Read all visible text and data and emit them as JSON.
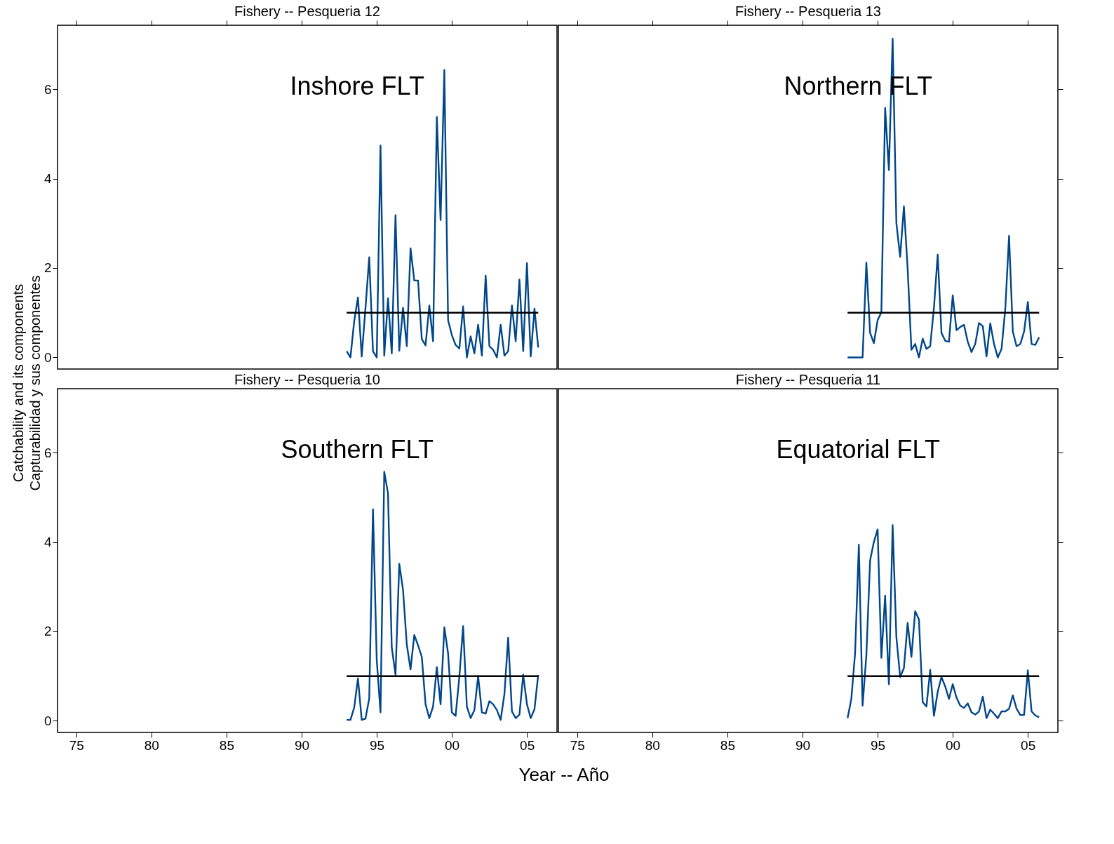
{
  "chart_data": [
    {
      "type": "line",
      "title": "Fishery -- Pesqueria  12",
      "annotations": [
        "Inshore FLT"
      ],
      "ylabel": "Catchability and its components\nCapturabilidad y sus componentes",
      "tick_labels": "y",
      "x": [
        1993.0,
        1993.25,
        1993.5,
        1993.75,
        1994.0,
        1994.25,
        1994.5,
        1994.75,
        1995.0,
        1995.25,
        1995.5,
        1995.75,
        1996.0,
        1996.25,
        1996.5,
        1996.75,
        1997.0,
        1997.25,
        1997.5,
        1997.75,
        1998.0,
        1998.25,
        1998.5,
        1998.75,
        1999.0,
        1999.25,
        1999.5,
        1999.75,
        2000.0,
        2000.25,
        2000.5,
        2000.75,
        2001.0,
        2001.25,
        2001.5,
        2001.75,
        2002.0,
        2002.25,
        2002.5,
        2002.75,
        2003.0,
        2003.25,
        2003.5,
        2003.75,
        2004.0,
        2004.25,
        2004.5,
        2004.75,
        2005.0,
        2005.25,
        2005.5,
        2005.75
      ],
      "xticks": [
        1975,
        1980,
        1985,
        1990,
        1995,
        2000,
        2005
      ],
      "series": [
        {
          "color": "#00468b",
          "values": [
            0.14,
            0.0,
            0.81,
            1.34,
            0.02,
            1.1,
            2.24,
            0.14,
            0.0,
            4.74,
            0.04,
            1.32,
            0.09,
            3.18,
            0.15,
            1.11,
            0.25,
            2.44,
            1.72,
            1.72,
            0.41,
            0.27,
            1.16,
            0.36,
            5.38,
            3.07,
            6.43,
            0.83,
            0.5,
            0.28,
            0.2,
            1.14,
            0.0,
            0.47,
            0.09,
            0.73,
            0.04,
            1.83,
            0.25,
            0.17,
            0.0,
            0.73,
            0.04,
            0.14,
            1.16,
            0.36,
            1.74,
            0.14,
            2.11,
            0.02,
            1.09,
            0.22
          ]
        },
        {
          "color": "#000000",
          "values": [
            1,
            1,
            1,
            1,
            1,
            1,
            1,
            1,
            1,
            1,
            1,
            1,
            1,
            1,
            1,
            1,
            1,
            1,
            1,
            1,
            1,
            1,
            1,
            1,
            1,
            1,
            1,
            1,
            1,
            1,
            1,
            1,
            1,
            1,
            1,
            1,
            1,
            1,
            1,
            1,
            1,
            1,
            1,
            1,
            1,
            1,
            1,
            1,
            1,
            1,
            1,
            1
          ]
        }
      ],
      "xlim": [
        1973.75,
        2007.0
      ],
      "ylim": [
        -0.26,
        7.43
      ],
      "yticks": [
        0,
        2,
        4,
        6
      ],
      "grid": false,
      "legend": false
    },
    {
      "type": "line",
      "title": "Fishery -- Pesqueria  13",
      "annotations": [
        "Northern FLT"
      ],
      "tick_labels": false,
      "x": [
        1993.0,
        1993.25,
        1993.5,
        1993.75,
        1994.0,
        1994.25,
        1994.5,
        1994.75,
        1995.0,
        1995.25,
        1995.5,
        1995.75,
        1996.0,
        1996.25,
        1996.5,
        1996.75,
        1997.0,
        1997.25,
        1997.5,
        1997.75,
        1998.0,
        1998.25,
        1998.5,
        1998.75,
        1999.0,
        1999.25,
        1999.5,
        1999.75,
        2000.0,
        2000.25,
        2000.5,
        2000.75,
        2001.0,
        2001.25,
        2001.5,
        2001.75,
        2002.0,
        2002.25,
        2002.5,
        2002.75,
        2003.0,
        2003.25,
        2003.5,
        2003.75,
        2004.0,
        2004.25,
        2004.5,
        2004.75,
        2005.0,
        2005.25,
        2005.5,
        2005.75
      ],
      "xticks": [
        1975,
        1980,
        1985,
        1990,
        1995,
        2000,
        2005
      ],
      "series": [
        {
          "color": "#00468b",
          "values": [
            0.0,
            0.0,
            0.0,
            0.0,
            0.0,
            2.12,
            0.55,
            0.32,
            0.83,
            1.01,
            5.58,
            4.19,
            7.13,
            3.0,
            2.25,
            3.38,
            1.98,
            0.17,
            0.3,
            0.0,
            0.42,
            0.19,
            0.25,
            1.11,
            2.3,
            0.55,
            0.37,
            0.35,
            1.39,
            0.61,
            0.68,
            0.73,
            0.35,
            0.12,
            0.3,
            0.77,
            0.7,
            0.02,
            0.76,
            0.3,
            0.0,
            0.19,
            1.09,
            2.72,
            0.58,
            0.25,
            0.3,
            0.58,
            1.24,
            0.3,
            0.28,
            0.45
          ]
        },
        {
          "color": "#000000",
          "values": [
            1,
            1,
            1,
            1,
            1,
            1,
            1,
            1,
            1,
            1,
            1,
            1,
            1,
            1,
            1,
            1,
            1,
            1,
            1,
            1,
            1,
            1,
            1,
            1,
            1,
            1,
            1,
            1,
            1,
            1,
            1,
            1,
            1,
            1,
            1,
            1,
            1,
            1,
            1,
            1,
            1,
            1,
            1,
            1,
            1,
            1,
            1,
            1,
            1,
            1,
            1,
            1
          ]
        }
      ],
      "xlim": [
        1973.75,
        2007.0
      ],
      "ylim": [
        -0.26,
        7.43
      ],
      "yticks": [
        0,
        2,
        4,
        6
      ],
      "grid": false,
      "legend": false
    },
    {
      "type": "line",
      "title": "Fishery -- Pesqueria  10",
      "annotations": [
        "Southern FLT"
      ],
      "xlabel": "Year -- Año",
      "x": [
        1993.0,
        1993.25,
        1993.5,
        1993.75,
        1994.0,
        1994.25,
        1994.5,
        1994.75,
        1995.0,
        1995.25,
        1995.5,
        1995.75,
        1996.0,
        1996.25,
        1996.5,
        1996.75,
        1997.0,
        1997.25,
        1997.5,
        1997.75,
        1998.0,
        1998.25,
        1998.5,
        1998.75,
        1999.0,
        1999.25,
        1999.5,
        1999.75,
        2000.0,
        2000.25,
        2000.5,
        2000.75,
        2001.0,
        2001.25,
        2001.5,
        2001.75,
        2002.0,
        2002.25,
        2002.5,
        2002.75,
        2003.0,
        2003.25,
        2003.5,
        2003.75,
        2004.0,
        2004.25,
        2004.5,
        2004.75,
        2005.0,
        2005.25,
        2005.5,
        2005.75
      ],
      "series": [
        {
          "color": "#00468b",
          "values": [
            0.02,
            0.02,
            0.3,
            0.95,
            0.02,
            0.05,
            0.5,
            4.73,
            1.36,
            0.19,
            5.57,
            5.09,
            1.64,
            1.03,
            3.51,
            2.93,
            1.71,
            1.15,
            1.92,
            1.69,
            1.43,
            0.37,
            0.06,
            0.32,
            1.2,
            0.37,
            2.09,
            1.51,
            0.19,
            0.11,
            0.98,
            2.12,
            0.32,
            0.06,
            0.24,
            1.0,
            0.19,
            0.16,
            0.44,
            0.37,
            0.24,
            0.02,
            0.6,
            1.86,
            0.21,
            0.06,
            0.14,
            1.03,
            0.37,
            0.06,
            0.26,
            1.03
          ]
        },
        {
          "color": "#000000",
          "values": [
            1,
            1,
            1,
            1,
            1,
            1,
            1,
            1,
            1,
            1,
            1,
            1,
            1,
            1,
            1,
            1,
            1,
            1,
            1,
            1,
            1,
            1,
            1,
            1,
            1,
            1,
            1,
            1,
            1,
            1,
            1,
            1,
            1,
            1,
            1,
            1,
            1,
            1,
            1,
            1,
            1,
            1,
            1,
            1,
            1,
            1,
            1,
            1,
            1,
            1,
            1,
            1
          ]
        }
      ],
      "xlim": [
        1973.75,
        2007.0
      ],
      "ylim": [
        -0.26,
        7.43
      ],
      "xticks": [
        {
          "value": 1975,
          "label": "75"
        },
        {
          "value": 1980,
          "label": "80"
        },
        {
          "value": 1985,
          "label": "85"
        },
        {
          "value": 1990,
          "label": "90"
        },
        {
          "value": 1995,
          "label": "95"
        },
        {
          "value": 2000,
          "label": "00"
        },
        {
          "value": 2005,
          "label": "05"
        }
      ],
      "yticks": [
        0,
        2,
        4,
        6
      ],
      "grid": false,
      "legend": false
    },
    {
      "type": "line",
      "title": "Fishery -- Pesqueria  11",
      "annotations": [
        "Equatorial FLT"
      ],
      "tick_labels": "x",
      "x": [
        1993.0,
        1993.25,
        1993.5,
        1993.75,
        1994.0,
        1994.25,
        1994.5,
        1994.75,
        1995.0,
        1995.25,
        1995.5,
        1995.75,
        1996.0,
        1996.25,
        1996.5,
        1996.75,
        1997.0,
        1997.25,
        1997.5,
        1997.75,
        1998.0,
        1998.25,
        1998.5,
        1998.75,
        1999.0,
        1999.25,
        1999.5,
        1999.75,
        2000.0,
        2000.25,
        2000.5,
        2000.75,
        2001.0,
        2001.25,
        2001.5,
        2001.75,
        2002.0,
        2002.25,
        2002.5,
        2002.75,
        2003.0,
        2003.25,
        2003.5,
        2003.75,
        2004.0,
        2004.25,
        2004.5,
        2004.75,
        2005.0,
        2005.25,
        2005.5,
        2005.75
      ],
      "series": [
        {
          "color": "#00468b",
          "values": [
            0.06,
            0.49,
            1.51,
            3.94,
            0.34,
            1.46,
            3.59,
            4.0,
            4.28,
            1.41,
            2.8,
            0.82,
            4.38,
            1.87,
            0.98,
            1.18,
            2.19,
            1.43,
            2.45,
            2.27,
            0.42,
            0.32,
            1.14,
            0.11,
            0.65,
            0.98,
            0.77,
            0.49,
            0.82,
            0.52,
            0.34,
            0.29,
            0.39,
            0.19,
            0.14,
            0.21,
            0.54,
            0.06,
            0.25,
            0.16,
            0.06,
            0.21,
            0.21,
            0.27,
            0.57,
            0.27,
            0.13,
            0.13,
            1.13,
            0.21,
            0.12,
            0.08
          ]
        },
        {
          "color": "#000000",
          "values": [
            1,
            1,
            1,
            1,
            1,
            1,
            1,
            1,
            1,
            1,
            1,
            1,
            1,
            1,
            1,
            1,
            1,
            1,
            1,
            1,
            1,
            1,
            1,
            1,
            1,
            1,
            1,
            1,
            1,
            1,
            1,
            1,
            1,
            1,
            1,
            1,
            1,
            1,
            1,
            1,
            1,
            1,
            1,
            1,
            1,
            1,
            1,
            1,
            1,
            1,
            1,
            1
          ]
        }
      ],
      "xlim": [
        1973.75,
        2007.0
      ],
      "ylim": [
        -0.26,
        7.43
      ],
      "xticks": [
        {
          "value": 1975,
          "label": "75"
        },
        {
          "value": 1980,
          "label": "80"
        },
        {
          "value": 1985,
          "label": "85"
        },
        {
          "value": 1990,
          "label": "90"
        },
        {
          "value": 1995,
          "label": "95"
        },
        {
          "value": 2000,
          "label": "00"
        },
        {
          "value": 2005,
          "label": "05"
        }
      ],
      "yticks": [
        0,
        2,
        4,
        6
      ],
      "grid": false,
      "legend": false
    }
  ]
}
